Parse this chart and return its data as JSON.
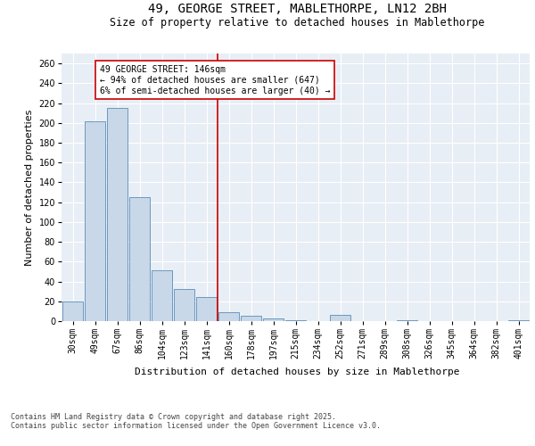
{
  "title_line1": "49, GEORGE STREET, MABLETHORPE, LN12 2BH",
  "title_line2": "Size of property relative to detached houses in Mablethorpe",
  "xlabel": "Distribution of detached houses by size in Mablethorpe",
  "ylabel": "Number of detached properties",
  "categories": [
    "30sqm",
    "49sqm",
    "67sqm",
    "86sqm",
    "104sqm",
    "123sqm",
    "141sqm",
    "160sqm",
    "178sqm",
    "197sqm",
    "215sqm",
    "234sqm",
    "252sqm",
    "271sqm",
    "289sqm",
    "308sqm",
    "326sqm",
    "345sqm",
    "364sqm",
    "382sqm",
    "401sqm"
  ],
  "values": [
    20,
    202,
    215,
    125,
    51,
    32,
    24,
    9,
    5,
    3,
    1,
    0,
    6,
    0,
    0,
    1,
    0,
    0,
    0,
    0,
    1
  ],
  "bar_color": "#c8d8e8",
  "bar_edge_color": "#5b8db8",
  "vline_x_index": 6.5,
  "vline_color": "#cc0000",
  "annotation_text": "49 GEORGE STREET: 146sqm\n← 94% of detached houses are smaller (647)\n6% of semi-detached houses are larger (40) →",
  "annotation_box_color": "#ffffff",
  "annotation_box_edge_color": "#cc0000",
  "ylim": [
    0,
    270
  ],
  "yticks": [
    0,
    20,
    40,
    60,
    80,
    100,
    120,
    140,
    160,
    180,
    200,
    220,
    240,
    260
  ],
  "background_color": "#e8eef5",
  "footer_text": "Contains HM Land Registry data © Crown copyright and database right 2025.\nContains public sector information licensed under the Open Government Licence v3.0.",
  "title_fontsize": 10,
  "subtitle_fontsize": 8.5,
  "axis_label_fontsize": 8,
  "tick_fontsize": 7,
  "annotation_fontsize": 7,
  "footer_fontsize": 6
}
